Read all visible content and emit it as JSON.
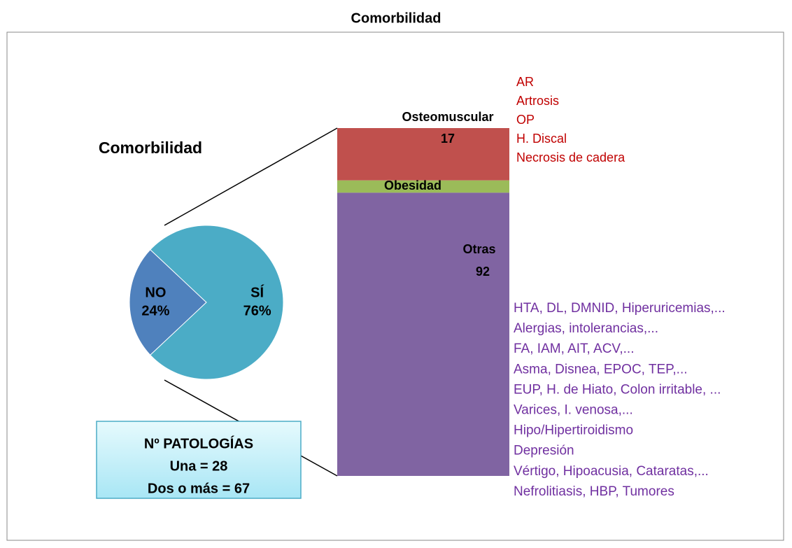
{
  "title": "Comorbilidad",
  "chart_data": [
    {
      "type": "pie",
      "title": "Comorbilidad",
      "categories": [
        "NO",
        "SÍ"
      ],
      "values": [
        24,
        76
      ],
      "value_labels": [
        "24%",
        "76%"
      ],
      "colors": [
        "#4f81bd",
        "#4bacc6"
      ]
    },
    {
      "type": "bar",
      "stacked": true,
      "series": [
        {
          "name": "Osteomuscular",
          "color": "#c0504d",
          "values": [
            17
          ]
        },
        {
          "name": "Obesidad",
          "color": "#9bbb59",
          "values": [
            4
          ]
        },
        {
          "name": "Otras",
          "color": "#8064a2",
          "values": [
            92
          ]
        }
      ]
    }
  ],
  "annotations": {
    "osteomuscular_list": [
      "AR",
      "Artrosis",
      "OP",
      "H. Discal",
      "Necrosis  de cadera"
    ],
    "otras_list": [
      "HTA, DL, DMNID, Hiperuricemias,...",
      "Alergias, intolerancias,...",
      "FA, IAM, AIT, ACV,...",
      "Asma, Disnea, EPOC, TEP,...",
      "EUP, H. de Hiato, Colon irritable, ...",
      "Varices, I. venosa,...",
      "Hipo/Hipertiroidismo",
      "Depresión",
      "Vértigo, Hipoacusia, Cataratas,...",
      "Nefrolitiasis, HBP, Tumores"
    ],
    "box": {
      "title": "Nº PATOLOGÍAS",
      "lines": [
        "Una = 28",
        "Dos o más = 67"
      ]
    }
  }
}
